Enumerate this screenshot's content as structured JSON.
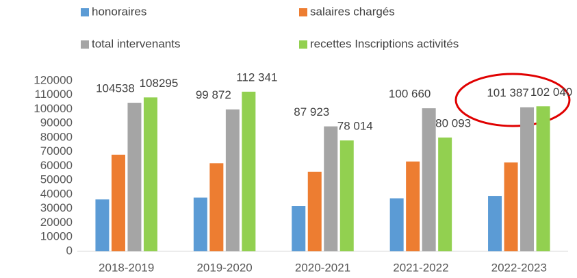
{
  "chart_data": {
    "type": "bar",
    "categories": [
      "2018-2019",
      "2019-2020",
      "2020-2021",
      "2021-2022",
      "2022-2023"
    ],
    "series": [
      {
        "name": "honoraires",
        "color": "#5B9BD5",
        "values": [
          36500,
          37800,
          31800,
          37300,
          39000
        ]
      },
      {
        "name": "salaires chargés",
        "color": "#ED7D31",
        "values": [
          68000,
          62000,
          56000,
          63200,
          62500
        ]
      },
      {
        "name": "total intervenants",
        "color": "#A5A5A5",
        "values": [
          104538,
          99872,
          87923,
          100660,
          101387
        ],
        "value_labels": [
          "104538",
          "99 872",
          "87 923",
          "100 660",
          "101 387"
        ]
      },
      {
        "name": "recettes Inscriptions activités",
        "color": "#92D050",
        "values": [
          108295,
          112341,
          78014,
          80093,
          102040
        ],
        "value_labels": [
          "108295",
          "112 341",
          "78 014",
          "80 093",
          "102 040"
        ]
      }
    ],
    "ylim": [
      0,
      120000
    ],
    "yticks": [
      0,
      10000,
      20000,
      30000,
      40000,
      50000,
      60000,
      70000,
      80000,
      90000,
      100000,
      110000,
      120000
    ],
    "grid": false
  }
}
